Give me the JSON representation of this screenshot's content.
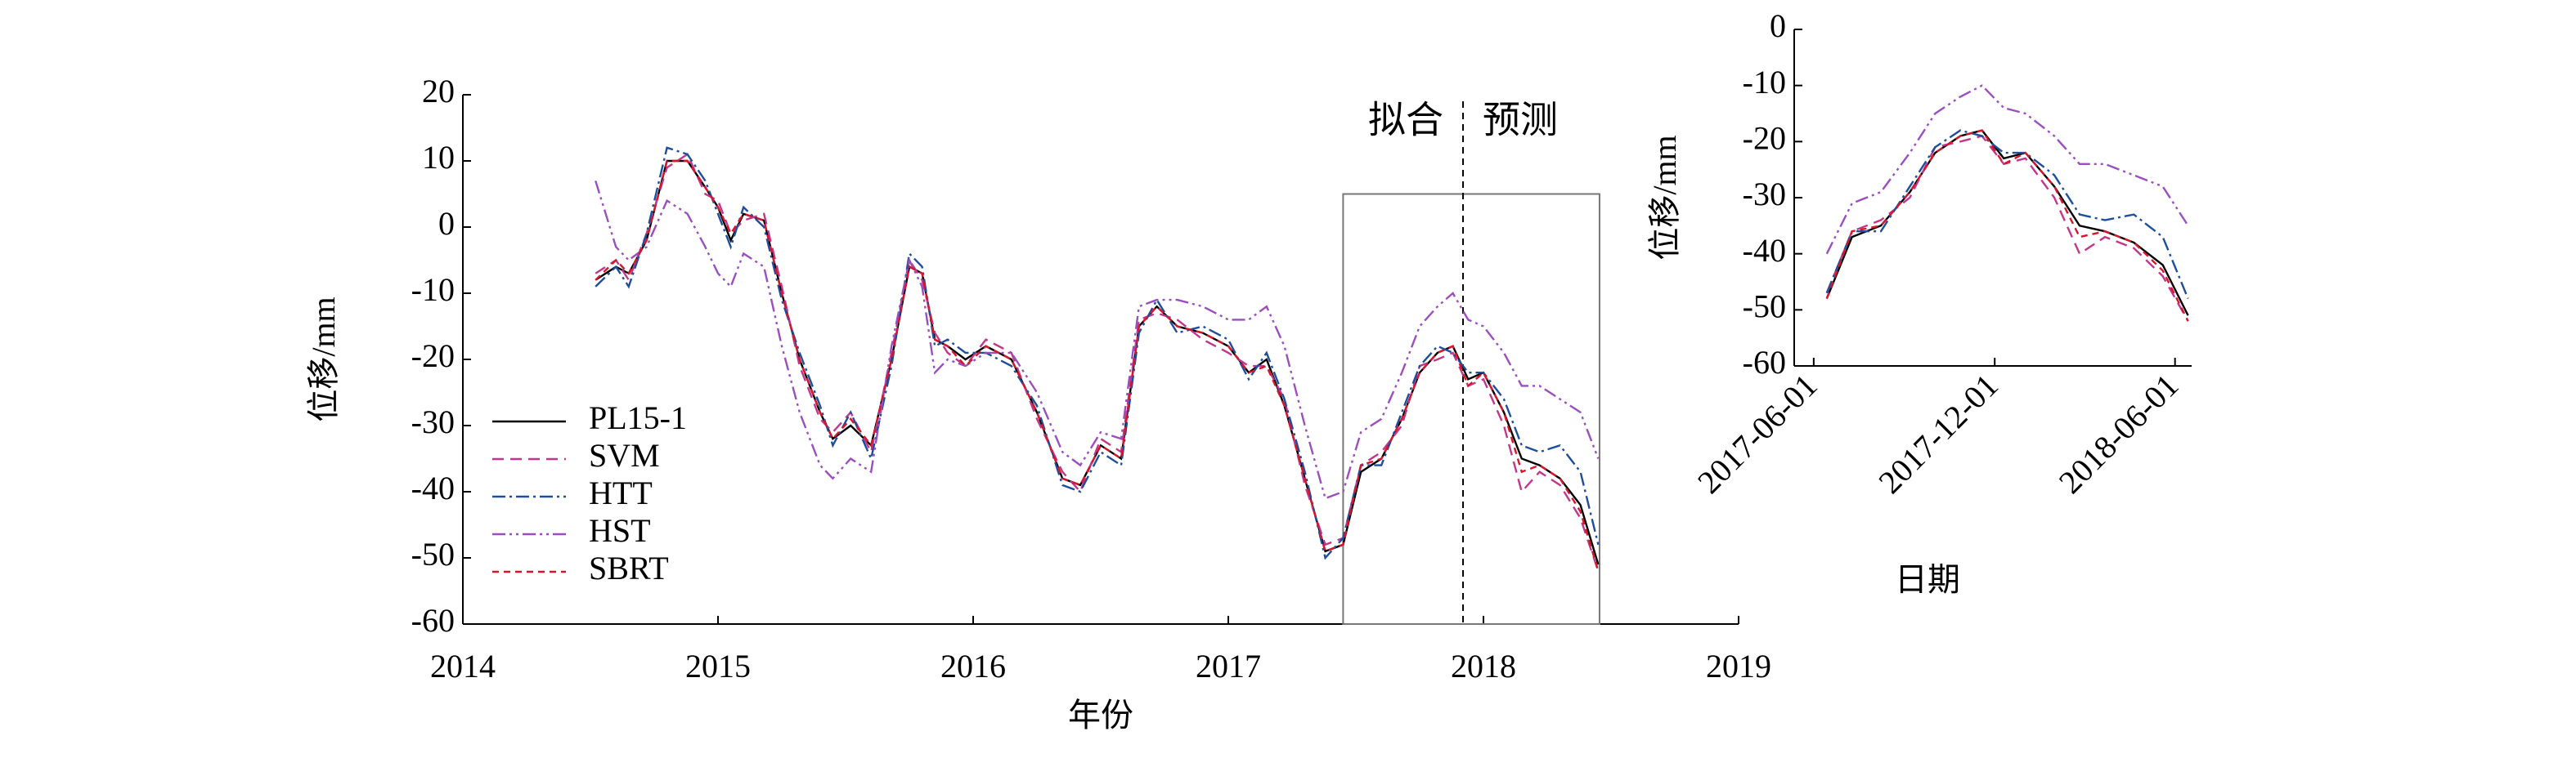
{
  "chart_data": [
    {
      "type": "line",
      "xlabel": "年份",
      "ylabel": "位移/mm",
      "xlim": [
        2014,
        2019
      ],
      "xticks": [
        2014,
        2015,
        2016,
        2017,
        2018,
        2019
      ],
      "ylim": [
        -60,
        20
      ],
      "yticks": [
        -60,
        -50,
        -40,
        -30,
        -20,
        -10,
        0,
        10,
        20
      ],
      "legend": "lower left",
      "annotations": [
        "拟合",
        "预测"
      ],
      "box": {
        "xlim": [
          2017.45,
          2018.455
        ],
        "ylim": [
          -60,
          5
        ]
      },
      "split": 2017.92,
      "x": [
        2014.52,
        2014.6,
        2014.65,
        2014.72,
        2014.8,
        2014.88,
        2014.95,
        2015.0,
        2015.05,
        2015.1,
        2015.18,
        2015.25,
        2015.32,
        2015.4,
        2015.45,
        2015.52,
        2015.6,
        2015.68,
        2015.75,
        2015.8,
        2015.85,
        2015.9,
        2015.97,
        2016.05,
        2016.15,
        2016.25,
        2016.35,
        2016.42,
        2016.5,
        2016.58,
        2016.65,
        2016.72,
        2016.8,
        2016.9,
        2017.0,
        2017.08,
        2017.15,
        2017.22,
        2017.3,
        2017.38,
        2017.45,
        2017.52,
        2017.6,
        2017.68,
        2017.75,
        2017.82,
        2017.88,
        2017.94,
        2018.0,
        2018.08,
        2018.15,
        2018.22,
        2018.3,
        2018.38,
        2018.45
      ],
      "series": [
        {
          "name": "PL15-1",
          "color": "#000000",
          "dash": "none",
          "values": [
            -8,
            -6,
            -7,
            -2,
            10,
            10,
            6,
            3,
            -2,
            2,
            1,
            -10,
            -20,
            -28,
            -32,
            -30,
            -33,
            -20,
            -6,
            -7,
            -17,
            -18,
            -20,
            -18,
            -20,
            -28,
            -38,
            -39,
            -33,
            -35,
            -15,
            -12,
            -15,
            -16,
            -18,
            -22,
            -20,
            -27,
            -38,
            -49,
            -48,
            -37,
            -35,
            -29,
            -22,
            -19,
            -18,
            -23,
            -22,
            -28,
            -35,
            -36,
            -38,
            -42,
            -51
          ]
        },
        {
          "name": "SVM",
          "color": "#c2378c",
          "dash": "14,8",
          "values": [
            -7,
            -5,
            -8,
            -1,
            9,
            11,
            5,
            4,
            -1,
            1,
            2,
            -9,
            -21,
            -29,
            -31,
            -28,
            -34,
            -19,
            -5,
            -8,
            -16,
            -19,
            -21,
            -17,
            -19,
            -29,
            -37,
            -40,
            -32,
            -34,
            -14,
            -13,
            -14,
            -17,
            -19,
            -21,
            -21,
            -26,
            -39,
            -48,
            -47,
            -36,
            -34,
            -30,
            -21,
            -20,
            -19,
            -24,
            -23,
            -30,
            -40,
            -37,
            -39,
            -44,
            -52
          ]
        },
        {
          "name": "HTT",
          "color": "#1f4e9c",
          "dash": "16,5,3,5",
          "values": [
            -9,
            -6,
            -9,
            -1,
            12,
            11,
            7,
            2,
            -3,
            3,
            0,
            -11,
            -19,
            -27,
            -33,
            -28,
            -35,
            -21,
            -4,
            -6,
            -18,
            -17,
            -19,
            -19,
            -21,
            -27,
            -39,
            -40,
            -34,
            -36,
            -16,
            -11,
            -16,
            -15,
            -17,
            -23,
            -19,
            -26,
            -37,
            -50,
            -47,
            -36,
            -36,
            -28,
            -21,
            -18,
            -19,
            -22,
            -22,
            -26,
            -33,
            -34,
            -33,
            -37,
            -48
          ]
        },
        {
          "name": "HST",
          "color": "#9b4fbf",
          "dash": "16,5,3,5,3,5",
          "values": [
            7,
            -3,
            -5,
            -3,
            4,
            2,
            -3,
            -7,
            -9,
            -4,
            -6,
            -18,
            -28,
            -36,
            -38,
            -35,
            -37,
            -18,
            -5,
            -9,
            -22,
            -20,
            -21,
            -19,
            -19,
            -25,
            -34,
            -36,
            -31,
            -32,
            -12,
            -11,
            -11,
            -12,
            -14,
            -14,
            -12,
            -18,
            -30,
            -41,
            -40,
            -31,
            -29,
            -22,
            -15,
            -12,
            -10,
            -14,
            -15,
            -19,
            -24,
            -24,
            -26,
            -28,
            -35
          ]
        },
        {
          "name": "SBRT",
          "color": "#d9152b",
          "dash": "8,6",
          "values": [
            -8,
            -5,
            -7,
            -2,
            10,
            10,
            6,
            3,
            -1,
            2,
            1,
            -10,
            -20,
            -28,
            -32,
            -29,
            -33,
            -20,
            -6,
            -7,
            -17,
            -18,
            -21,
            -18,
            -20,
            -28,
            -38,
            -39,
            -33,
            -35,
            -15,
            -12,
            -15,
            -16,
            -18,
            -22,
            -21,
            -27,
            -38,
            -49,
            -48,
            -36,
            -35,
            -29,
            -22,
            -19,
            -18,
            -24,
            -22,
            -28,
            -37,
            -36,
            -38,
            -43,
            -52
          ]
        }
      ]
    },
    {
      "type": "line",
      "xlabel": "日期",
      "ylabel": "位移/mm",
      "xlim": [
        2017.36,
        2018.46
      ],
      "xticks": [
        {
          "value": 2017.414,
          "label": "2017-06-01"
        },
        {
          "value": 2017.915,
          "label": "2017-12-01"
        },
        {
          "value": 2018.414,
          "label": "2018-06-01"
        }
      ],
      "ylim": [
        -60,
        0
      ],
      "yticks": [
        -60,
        -50,
        -40,
        -30,
        -20,
        -10,
        0
      ],
      "x": [
        2017.45,
        2017.52,
        2017.6,
        2017.68,
        2017.75,
        2017.82,
        2017.88,
        2017.94,
        2018.0,
        2018.08,
        2018.15,
        2018.22,
        2018.3,
        2018.38,
        2018.45
      ],
      "series": [
        {
          "name": "PL15-1",
          "color": "#000000",
          "dash": "none",
          "values": [
            -48,
            -37,
            -35,
            -29,
            -22,
            -19,
            -18,
            -23,
            -22,
            -28,
            -35,
            -36,
            -38,
            -42,
            -51
          ]
        },
        {
          "name": "SVM",
          "color": "#c2378c",
          "dash": "14,8",
          "values": [
            -47,
            -36,
            -34,
            -30,
            -21,
            -20,
            -19,
            -24,
            -23,
            -30,
            -40,
            -37,
            -39,
            -44,
            -52
          ]
        },
        {
          "name": "HTT",
          "color": "#1f4e9c",
          "dash": "16,5,3,5",
          "values": [
            -47,
            -36,
            -36,
            -28,
            -21,
            -18,
            -19,
            -22,
            -22,
            -26,
            -33,
            -34,
            -33,
            -37,
            -48
          ]
        },
        {
          "name": "HST",
          "color": "#9b4fbf",
          "dash": "16,5,3,5,3,5",
          "values": [
            -40,
            -31,
            -29,
            -22,
            -15,
            -12,
            -10,
            -14,
            -15,
            -19,
            -24,
            -24,
            -26,
            -28,
            -35
          ]
        },
        {
          "name": "SBRT",
          "color": "#d9152b",
          "dash": "8,6",
          "values": [
            -48,
            -36,
            -35,
            -29,
            -22,
            -19,
            -18,
            -24,
            -22,
            -28,
            -37,
            -36,
            -38,
            -43,
            -52
          ]
        }
      ]
    }
  ]
}
